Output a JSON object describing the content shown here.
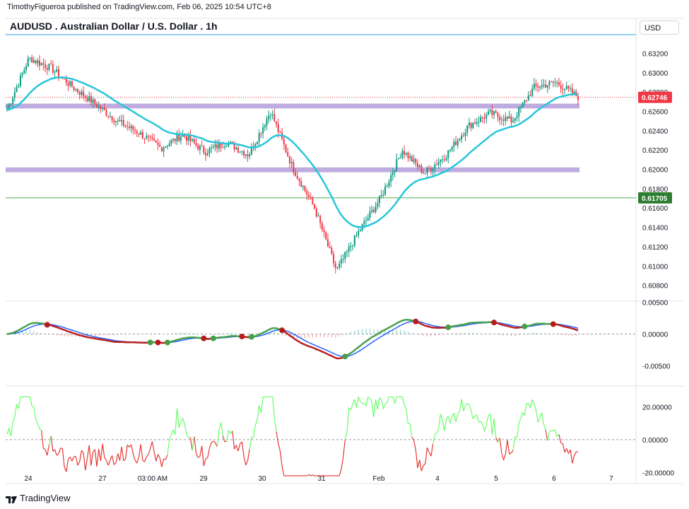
{
  "header": {
    "published": "TimothyFigueroa published on TradingView.com, Feb 06, 2025 10:54 UTC+8",
    "title": "AUDUSD . Australian Dollar / U.S. Dollar . 1h",
    "currency": "USD"
  },
  "footer": {
    "brand": "TradingView"
  },
  "colors": {
    "up": "#089981",
    "down": "#f23645",
    "ma": "#26c6da",
    "zone": "#b39ddb",
    "green_line": "#4caf50",
    "price_tag": "#f23645",
    "level_tag": "#2e7d32",
    "osc_fast": "#43a047",
    "osc_slow": "#2962ff",
    "osc_dark": "#b71c1c",
    "rsi_up": "#66ff66",
    "rsi_down": "#e53935"
  },
  "chart_data": [
    {
      "type": "candlestick",
      "title": "AUDUSD . Australian Dollar / U.S. Dollar . 1h",
      "x_ticks": [
        "24",
        "27",
        "03:00 AM",
        "29",
        "30",
        "31",
        "Feb",
        "4",
        "5",
        "6",
        "7"
      ],
      "y_ticks": [
        "0.63200",
        "0.63000",
        "0.62800",
        "0.62600",
        "0.62400",
        "0.62200",
        "0.62000",
        "0.61800",
        "0.61600",
        "0.61400",
        "0.61200",
        "0.61000",
        "0.60800"
      ],
      "ylim": [
        0.6068,
        0.6335
      ],
      "last_price": "0.62746",
      "horizontal_level": "0.61705",
      "zones": [
        [
          0.6263,
          0.6268
        ],
        [
          0.6197,
          0.6202
        ]
      ],
      "key_closes": [
        0.6262,
        0.6315,
        0.6305,
        0.6285,
        0.6268,
        0.625,
        0.6238,
        0.6222,
        0.6236,
        0.6218,
        0.6228,
        0.6215,
        0.626,
        0.6202,
        0.616,
        0.6095,
        0.6135,
        0.617,
        0.622,
        0.6196,
        0.6215,
        0.6245,
        0.6258,
        0.625,
        0.6285,
        0.629,
        0.6275
      ]
    },
    {
      "type": "line",
      "name": "oscillator",
      "y_ticks": [
        "0.00500",
        "0.00000",
        "-0.00500"
      ],
      "ylim": [
        -0.0075,
        0.0045
      ]
    },
    {
      "type": "line",
      "name": "momentum",
      "y_ticks": [
        "20.00000",
        "0.00000",
        "-20.00000"
      ],
      "ylim": [
        -25,
        30
      ]
    }
  ]
}
